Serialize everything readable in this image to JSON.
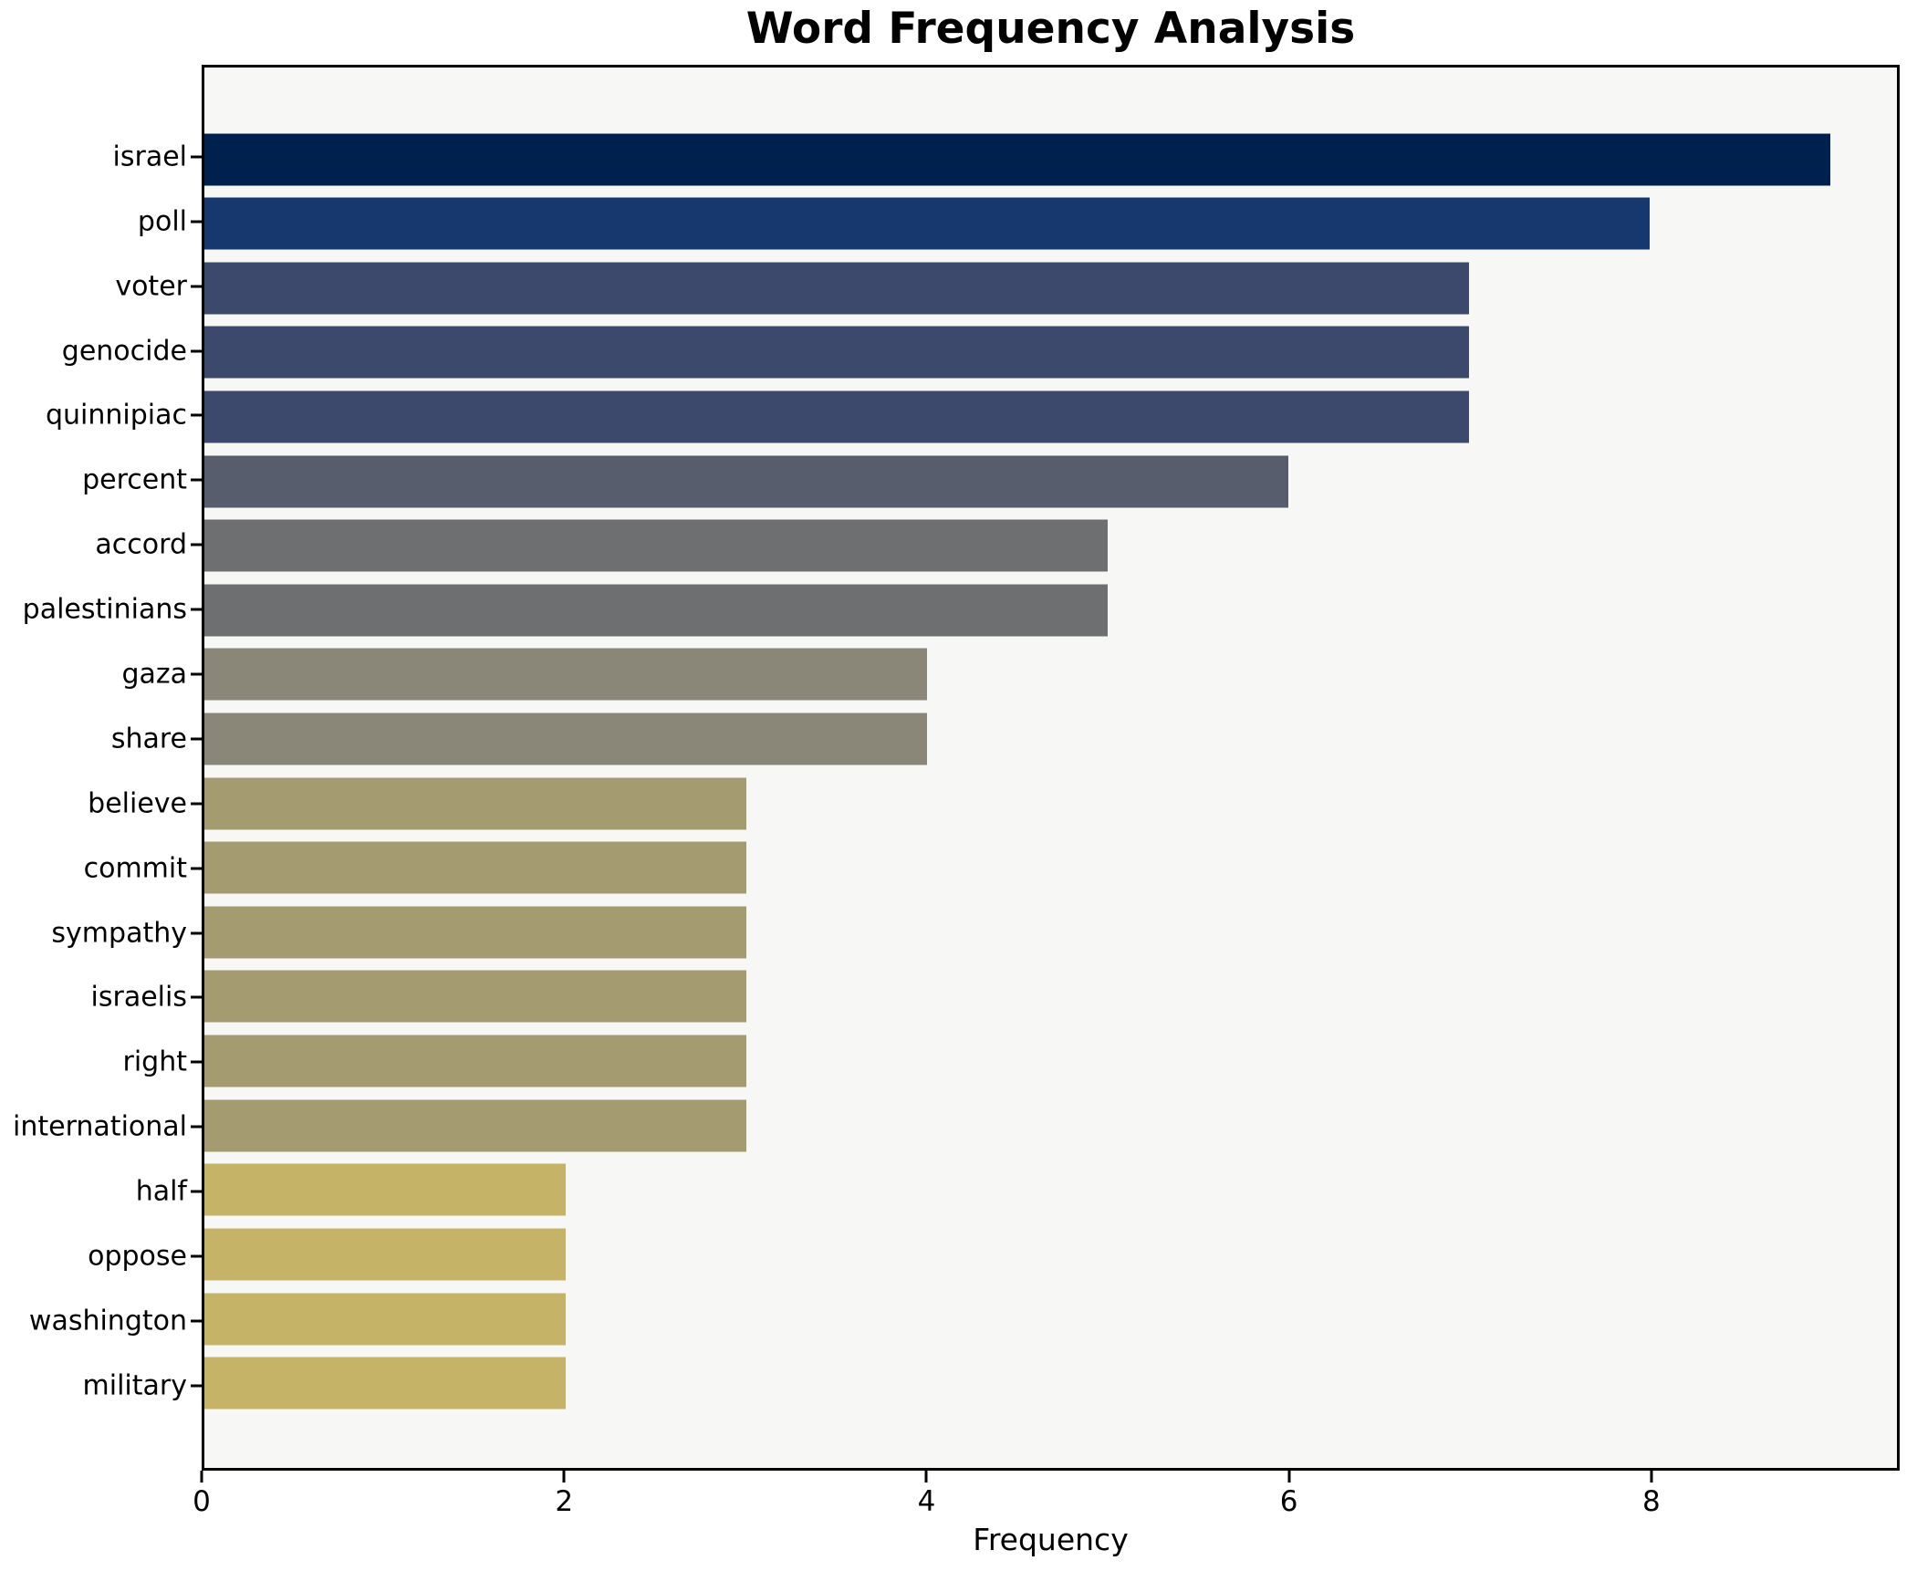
{
  "chart_data": {
    "type": "bar",
    "orientation": "horizontal",
    "title": "Word Frequency Analysis",
    "xlabel": "Frequency",
    "ylabel": "",
    "categories": [
      "israel",
      "poll",
      "voter",
      "genocide",
      "quinnipiac",
      "percent",
      "accord",
      "palestinians",
      "gaza",
      "share",
      "believe",
      "commit",
      "sympathy",
      "israelis",
      "right",
      "international",
      "half",
      "oppose",
      "washington",
      "military"
    ],
    "values": [
      9,
      8,
      7,
      7,
      7,
      6,
      5,
      5,
      4,
      4,
      3,
      3,
      3,
      3,
      3,
      3,
      2,
      2,
      2,
      2
    ],
    "bar_colors": [
      "#00214e",
      "#17386f",
      "#3c496c",
      "#3c496c",
      "#3c496c",
      "#575d6c",
      "#6e6f71",
      "#6e6f71",
      "#8a8779",
      "#8a8779",
      "#a49b70",
      "#a49b70",
      "#a49b70",
      "#a49b70",
      "#a49b70",
      "#a49b70",
      "#c5b468",
      "#c5b468",
      "#c5b468",
      "#c5b468"
    ],
    "xticks": [
      0,
      2,
      4,
      6,
      8
    ],
    "xlim": [
      0,
      9.37
    ],
    "grid": false,
    "legend": "none",
    "plot_background": "#f7f7f6",
    "figure_background": "#ffffff",
    "axis_color": "#000000",
    "colormap": "cividis"
  }
}
